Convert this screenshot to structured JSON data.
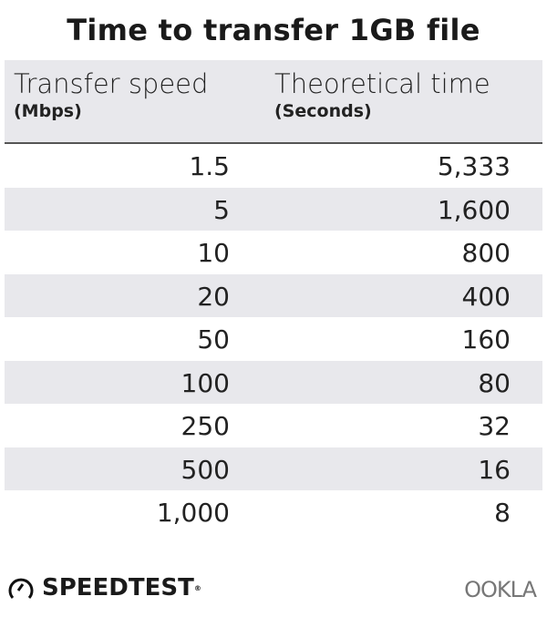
{
  "chart_data": {
    "type": "table",
    "title": "Time to transfer 1GB file",
    "columns": [
      {
        "label": "Transfer speed",
        "unit": "(Mbps)"
      },
      {
        "label": "Theoretical time",
        "unit": "(Seconds)"
      }
    ],
    "rows": [
      [
        "1.5",
        "5,333"
      ],
      [
        "5",
        "1,600"
      ],
      [
        "10",
        "800"
      ],
      [
        "20",
        "400"
      ],
      [
        "50",
        "160"
      ],
      [
        "100",
        "80"
      ],
      [
        "250",
        "32"
      ],
      [
        "500",
        "16"
      ],
      [
        "1,000",
        "8"
      ]
    ]
  },
  "colors": {
    "stripe": "#e8e8ec",
    "text": "#222222"
  },
  "branding": {
    "speedtest": "SPEEDTEST",
    "ookla": "OOKLA"
  }
}
